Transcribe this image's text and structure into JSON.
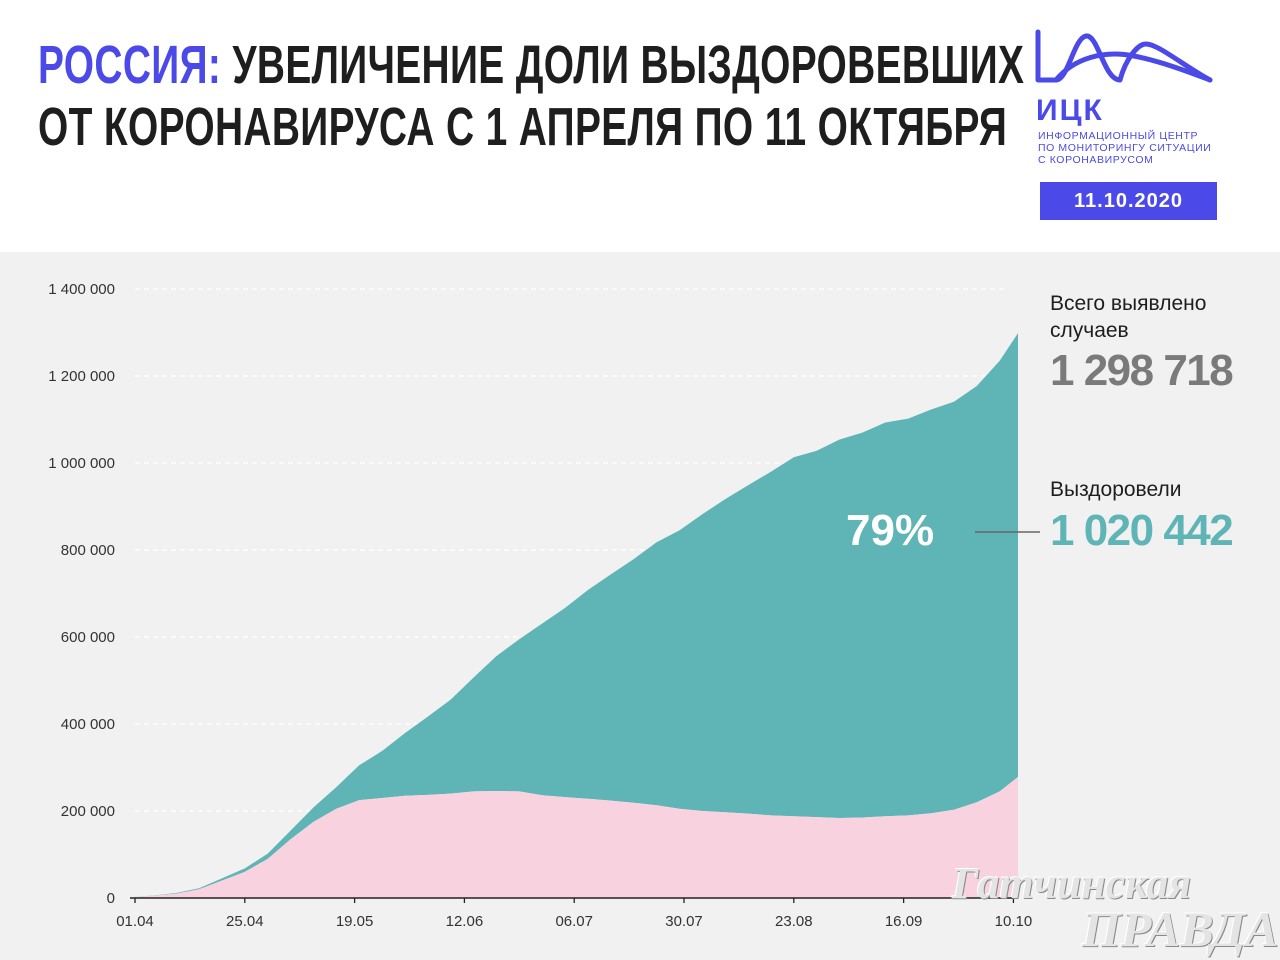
{
  "header": {
    "title_accent": "РОССИЯ:",
    "title_line1_rest": " УВЕЛИЧЕНИЕ ДОЛИ ВЫЗДОРОВЕВШИХ",
    "title_line2": "ОТ КОРОНАВИРУСА С 1 АПРЕЛЯ ПО 11 ОКТЯБРЯ"
  },
  "logo": {
    "word": "ИЦК",
    "sub1": "ИНФОРМАЦИОННЫЙ ЦЕНТР",
    "sub2": "ПО МОНИТОРИНГУ СИТУАЦИИ",
    "sub3": "С КОРОНАВИРУСОМ",
    "date": "11.10.2020",
    "color": "#4b4ae8"
  },
  "totals": {
    "total_label": "Всего выявлено случаев",
    "total_value": "1 298 718",
    "total_color": "#7a7a7a",
    "recovered_label": "Выздоровели",
    "recovered_value": "1 020 442",
    "recovered_color": "#5fb4b6",
    "percent": "79%"
  },
  "watermark": {
    "line1": "Гатчинская",
    "line2": "ПРАВДА"
  },
  "chart_data": {
    "type": "area",
    "title": "",
    "xlabel": "",
    "ylabel": "",
    "ylim": [
      0,
      1400000
    ],
    "yticks": [
      0,
      200000,
      400000,
      600000,
      800000,
      1000000,
      1200000,
      1400000
    ],
    "ytick_labels": [
      "0",
      "200 000",
      "400 000",
      "600 000",
      "800 000",
      "1 000 000",
      "1 200 000",
      "1 400 000"
    ],
    "xlim": [
      "2020-04-01",
      "2020-10-11"
    ],
    "xtick_labels": [
      "01.04",
      "25.04",
      "19.05",
      "12.06",
      "06.07",
      "30.07",
      "23.08",
      "16.09",
      "10.10"
    ],
    "xtick_dates": [
      "2020-04-01",
      "2020-04-25",
      "2020-05-19",
      "2020-06-12",
      "2020-07-06",
      "2020-07-30",
      "2020-08-23",
      "2020-09-16",
      "2020-10-10"
    ],
    "grid": true,
    "stacked": true,
    "dates": [
      "2020-04-01",
      "2020-04-05",
      "2020-04-10",
      "2020-04-15",
      "2020-04-20",
      "2020-04-25",
      "2020-04-30",
      "2020-05-05",
      "2020-05-10",
      "2020-05-15",
      "2020-05-20",
      "2020-05-25",
      "2020-05-30",
      "2020-06-04",
      "2020-06-09",
      "2020-06-14",
      "2020-06-19",
      "2020-06-24",
      "2020-06-29",
      "2020-07-04",
      "2020-07-09",
      "2020-07-14",
      "2020-07-19",
      "2020-07-24",
      "2020-07-29",
      "2020-08-03",
      "2020-08-08",
      "2020-08-13",
      "2020-08-18",
      "2020-08-23",
      "2020-08-28",
      "2020-09-02",
      "2020-09-07",
      "2020-09-12",
      "2020-09-17",
      "2020-09-22",
      "2020-09-27",
      "2020-10-02",
      "2020-10-07",
      "2020-10-11"
    ],
    "series": [
      {
        "name": "Выздоровели",
        "color": "#5fb4b6",
        "values": [
          200,
          700,
          1500,
          2500,
          5000,
          8000,
          12000,
          20000,
          33000,
          50000,
          80000,
          108000,
          144000,
          180000,
          216000,
          262000,
          310000,
          350000,
          395000,
          435000,
          480000,
          520000,
          560000,
          605000,
          640000,
          682000,
          720000,
          755000,
          790000,
          825000,
          842000,
          870000,
          885000,
          905000,
          912000,
          928000,
          938000,
          957000,
          990000,
          1020442
        ]
      },
      {
        "name": "",
        "color": "#f8d3df",
        "values": [
          2500,
          5000,
          10000,
          20000,
          40000,
          60000,
          90000,
          135000,
          175000,
          205000,
          225000,
          230000,
          235000,
          237000,
          240000,
          245000,
          246000,
          245000,
          236000,
          232000,
          228000,
          224000,
          219000,
          213000,
          205000,
          200000,
          197000,
          194000,
          190000,
          188000,
          186000,
          184000,
          185000,
          188000,
          190000,
          195000,
          203000,
          220000,
          245000,
          278276
        ]
      }
    ]
  }
}
